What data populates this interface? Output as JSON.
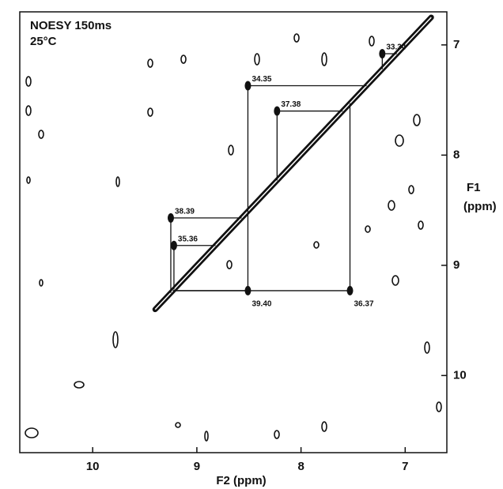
{
  "chart_data": {
    "type": "noesy",
    "title": "NOESY 150ms",
    "subtitle": "25°C",
    "x_label": "F2 (ppm)",
    "y_label": [
      "F1",
      "(ppm)"
    ],
    "xlim": [
      10.7,
      6.6
    ],
    "ylim": [
      6.7,
      10.7
    ],
    "xticks": [
      10,
      9,
      8,
      7
    ],
    "yticks": [
      7,
      8,
      9,
      10
    ],
    "color": "#111111",
    "cross_peaks": [
      {
        "label": "33.34",
        "x": 7.22,
        "y": 7.08
      },
      {
        "label": "34.35",
        "x": 8.51,
        "y": 7.37
      },
      {
        "label": "37.38",
        "x": 8.23,
        "y": 7.6
      },
      {
        "label": "38.39",
        "x": 9.25,
        "y": 8.57
      },
      {
        "label": "35.36",
        "x": 9.22,
        "y": 8.82
      },
      {
        "label": "39.40",
        "x": 8.51,
        "y": 9.23
      },
      {
        "label": "36.37",
        "x": 7.53,
        "y": 9.23
      }
    ]
  }
}
